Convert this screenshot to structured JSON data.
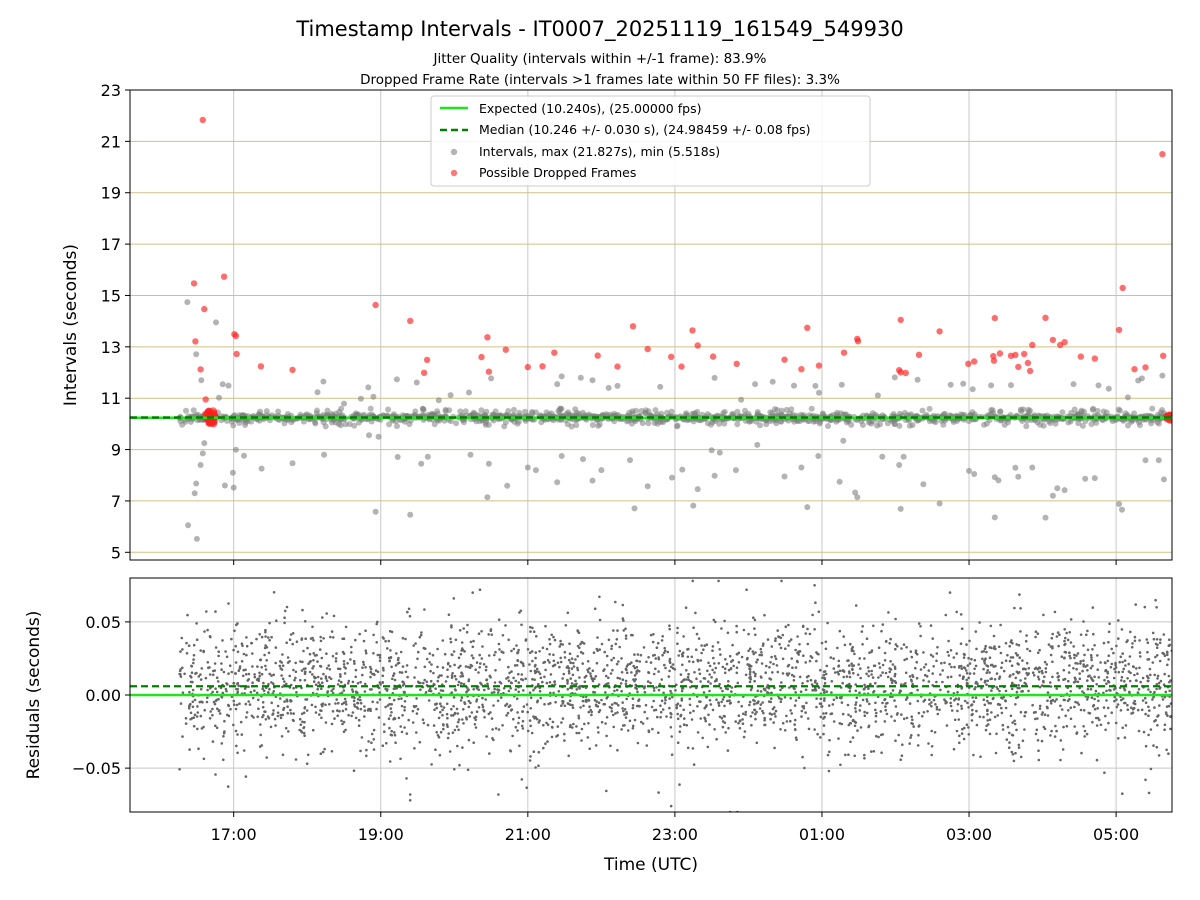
{
  "chart_data": {
    "type": "scatter",
    "title": "Timestamp Intervals - IT0007_20251119_161549_549930",
    "subtitle_lines": [
      "Jitter Quality (intervals within +/-1 frame): 83.9%",
      "Dropped Frame Rate (intervals >1 frames late within 50 FF files): 3.3%"
    ],
    "xlabel": "Time (UTC)",
    "x_ticks": [
      "17:00",
      "19:00",
      "21:00",
      "23:00",
      "01:00",
      "03:00",
      "05:00"
    ],
    "x_range_hours": [
      15.59,
      29.76
    ],
    "x_data_range_hours": [
      16.26,
      29.76
    ],
    "top": {
      "ylabel": "Intervals (seconds)",
      "ylim": [
        4.7,
        23.0
      ],
      "y_ticks": [
        5,
        7,
        9,
        11,
        13,
        15,
        17,
        19,
        21,
        23
      ],
      "grid": "horizontal gold lines at odd-second ticks, vertical grey lines at time ticks",
      "legend_position": "upper-center",
      "legend": [
        "Expected (10.240s), (25.00000 fps)",
        "Median (10.246 +/- 0.030 s), (24.98459 +/- 0.08 fps)",
        "Intervals, max (21.827s), min (5.518s)",
        "Possible Dropped Frames"
      ],
      "expected_interval": 10.24,
      "median_interval": 10.246,
      "max_interval": 21.827,
      "min_interval": 5.518,
      "dropped_frames": [
        {
          "x": 16.46,
          "y": 15.47
        },
        {
          "x": 16.48,
          "y": 13.21
        },
        {
          "x": 16.55,
          "y": 12.12
        },
        {
          "x": 16.58,
          "y": 21.83
        },
        {
          "x": 16.6,
          "y": 14.47
        },
        {
          "x": 16.62,
          "y": 10.95
        },
        {
          "x": 16.87,
          "y": 15.73
        },
        {
          "x": 17.01,
          "y": 13.49
        },
        {
          "x": 17.03,
          "y": 13.42
        },
        {
          "x": 17.04,
          "y": 12.72
        },
        {
          "x": 17.37,
          "y": 12.24
        },
        {
          "x": 17.8,
          "y": 12.1
        },
        {
          "x": 18.93,
          "y": 14.63
        },
        {
          "x": 19.4,
          "y": 14.01
        },
        {
          "x": 19.59,
          "y": 11.99
        },
        {
          "x": 19.63,
          "y": 12.49
        },
        {
          "x": 20.37,
          "y": 12.6
        },
        {
          "x": 20.45,
          "y": 13.37
        },
        {
          "x": 20.47,
          "y": 12.03
        },
        {
          "x": 20.7,
          "y": 12.89
        },
        {
          "x": 21.0,
          "y": 12.21
        },
        {
          "x": 21.2,
          "y": 12.24
        },
        {
          "x": 21.36,
          "y": 12.77
        },
        {
          "x": 21.95,
          "y": 12.66
        },
        {
          "x": 22.22,
          "y": 12.23
        },
        {
          "x": 22.43,
          "y": 13.8
        },
        {
          "x": 22.63,
          "y": 12.91
        },
        {
          "x": 22.95,
          "y": 12.61
        },
        {
          "x": 23.09,
          "y": 12.23
        },
        {
          "x": 23.24,
          "y": 13.64
        },
        {
          "x": 23.31,
          "y": 13.05
        },
        {
          "x": 23.52,
          "y": 12.62
        },
        {
          "x": 23.84,
          "y": 12.34
        },
        {
          "x": 24.49,
          "y": 12.5
        },
        {
          "x": 24.72,
          "y": 12.13
        },
        {
          "x": 24.8,
          "y": 13.74
        },
        {
          "x": 24.96,
          "y": 12.27
        },
        {
          "x": 25.3,
          "y": 12.77
        },
        {
          "x": 25.48,
          "y": 13.31
        },
        {
          "x": 25.49,
          "y": 13.22
        },
        {
          "x": 26.05,
          "y": 12.09
        },
        {
          "x": 26.07,
          "y": 12.01
        },
        {
          "x": 26.14,
          "y": 11.98
        },
        {
          "x": 26.07,
          "y": 14.05
        },
        {
          "x": 26.32,
          "y": 12.69
        },
        {
          "x": 26.6,
          "y": 13.6
        },
        {
          "x": 26.99,
          "y": 12.34
        },
        {
          "x": 27.07,
          "y": 12.43
        },
        {
          "x": 27.33,
          "y": 12.64
        },
        {
          "x": 27.34,
          "y": 12.46
        },
        {
          "x": 27.35,
          "y": 14.12
        },
        {
          "x": 27.42,
          "y": 12.74
        },
        {
          "x": 27.57,
          "y": 12.65
        },
        {
          "x": 27.63,
          "y": 12.68
        },
        {
          "x": 27.67,
          "y": 12.22
        },
        {
          "x": 27.75,
          "y": 12.72
        },
        {
          "x": 27.8,
          "y": 12.37
        },
        {
          "x": 27.83,
          "y": 12.06
        },
        {
          "x": 27.86,
          "y": 13.07
        },
        {
          "x": 28.04,
          "y": 14.13
        },
        {
          "x": 28.14,
          "y": 13.27
        },
        {
          "x": 28.24,
          "y": 13.07
        },
        {
          "x": 28.3,
          "y": 13.18
        },
        {
          "x": 28.52,
          "y": 12.62
        },
        {
          "x": 28.71,
          "y": 12.54
        },
        {
          "x": 29.04,
          "y": 13.66
        },
        {
          "x": 29.09,
          "y": 15.29
        },
        {
          "x": 29.25,
          "y": 12.13
        },
        {
          "x": 29.4,
          "y": 12.2
        },
        {
          "x": 29.64,
          "y": 12.65
        },
        {
          "x": 29.63,
          "y": 20.5
        }
      ],
      "interval_outliers": [
        {
          "x": 16.37,
          "y": 14.74
        },
        {
          "x": 16.38,
          "y": 6.05
        },
        {
          "x": 16.5,
          "y": 5.52
        },
        {
          "x": 16.47,
          "y": 7.3
        },
        {
          "x": 16.49,
          "y": 7.68
        },
        {
          "x": 16.49,
          "y": 12.71
        },
        {
          "x": 16.56,
          "y": 11.7
        },
        {
          "x": 16.55,
          "y": 8.4
        },
        {
          "x": 16.58,
          "y": 8.85
        },
        {
          "x": 16.6,
          "y": 9.25
        },
        {
          "x": 16.76,
          "y": 13.95
        },
        {
          "x": 16.8,
          "y": 11.02
        },
        {
          "x": 16.85,
          "y": 11.54
        },
        {
          "x": 16.88,
          "y": 7.6
        },
        {
          "x": 16.93,
          "y": 11.49
        },
        {
          "x": 16.99,
          "y": 8.1
        },
        {
          "x": 17.0,
          "y": 7.52
        },
        {
          "x": 17.03,
          "y": 8.99
        },
        {
          "x": 17.14,
          "y": 8.76
        },
        {
          "x": 17.38,
          "y": 8.26
        },
        {
          "x": 17.8,
          "y": 8.47
        },
        {
          "x": 18.14,
          "y": 11.23
        },
        {
          "x": 18.22,
          "y": 11.65
        },
        {
          "x": 18.23,
          "y": 8.8
        },
        {
          "x": 18.5,
          "y": 10.79
        },
        {
          "x": 18.73,
          "y": 10.98
        },
        {
          "x": 18.83,
          "y": 11.42
        },
        {
          "x": 18.9,
          "y": 11.06
        },
        {
          "x": 18.93,
          "y": 6.58
        },
        {
          "x": 18.84,
          "y": 9.56
        },
        {
          "x": 18.97,
          "y": 9.5
        },
        {
          "x": 19.22,
          "y": 11.73
        },
        {
          "x": 19.23,
          "y": 8.71
        },
        {
          "x": 19.4,
          "y": 6.46
        },
        {
          "x": 19.49,
          "y": 11.61
        },
        {
          "x": 19.55,
          "y": 8.45
        },
        {
          "x": 19.64,
          "y": 8.72
        },
        {
          "x": 19.79,
          "y": 10.92
        },
        {
          "x": 19.95,
          "y": 11.12
        },
        {
          "x": 20.2,
          "y": 11.22
        },
        {
          "x": 20.22,
          "y": 8.8
        },
        {
          "x": 20.45,
          "y": 7.14
        },
        {
          "x": 20.47,
          "y": 8.45
        },
        {
          "x": 20.5,
          "y": 11.77
        },
        {
          "x": 20.72,
          "y": 7.59
        },
        {
          "x": 21.0,
          "y": 8.3
        },
        {
          "x": 21.11,
          "y": 8.2
        },
        {
          "x": 21.4,
          "y": 7.73
        },
        {
          "x": 21.4,
          "y": 11.55
        },
        {
          "x": 21.46,
          "y": 11.85
        },
        {
          "x": 21.46,
          "y": 8.75
        },
        {
          "x": 21.72,
          "y": 11.8
        },
        {
          "x": 21.75,
          "y": 8.63
        },
        {
          "x": 21.88,
          "y": 11.7
        },
        {
          "x": 21.88,
          "y": 7.79
        },
        {
          "x": 22.0,
          "y": 8.2
        },
        {
          "x": 22.1,
          "y": 11.4
        },
        {
          "x": 22.22,
          "y": 11.48
        },
        {
          "x": 22.39,
          "y": 8.59
        },
        {
          "x": 22.45,
          "y": 6.71
        },
        {
          "x": 22.63,
          "y": 7.57
        },
        {
          "x": 22.8,
          "y": 11.44
        },
        {
          "x": 22.96,
          "y": 7.91
        },
        {
          "x": 23.1,
          "y": 8.22
        },
        {
          "x": 23.25,
          "y": 6.82
        },
        {
          "x": 23.31,
          "y": 7.46
        },
        {
          "x": 23.5,
          "y": 8.97
        },
        {
          "x": 23.54,
          "y": 11.79
        },
        {
          "x": 23.54,
          "y": 7.98
        },
        {
          "x": 23.61,
          "y": 8.88
        },
        {
          "x": 23.83,
          "y": 8.2
        },
        {
          "x": 23.9,
          "y": 10.94
        },
        {
          "x": 24.09,
          "y": 11.55
        },
        {
          "x": 24.12,
          "y": 9.18
        },
        {
          "x": 24.33,
          "y": 11.64
        },
        {
          "x": 24.49,
          "y": 7.95
        },
        {
          "x": 24.62,
          "y": 11.49
        },
        {
          "x": 24.72,
          "y": 8.3
        },
        {
          "x": 24.8,
          "y": 6.76
        },
        {
          "x": 24.91,
          "y": 11.48
        },
        {
          "x": 24.95,
          "y": 8.75
        },
        {
          "x": 24.96,
          "y": 11.21
        },
        {
          "x": 25.24,
          "y": 7.75
        },
        {
          "x": 25.27,
          "y": 11.52
        },
        {
          "x": 25.29,
          "y": 9.34
        },
        {
          "x": 25.45,
          "y": 7.33
        },
        {
          "x": 25.48,
          "y": 7.14
        },
        {
          "x": 25.76,
          "y": 11.11
        },
        {
          "x": 25.82,
          "y": 8.72
        },
        {
          "x": 25.99,
          "y": 11.81
        },
        {
          "x": 26.11,
          "y": 8.72
        },
        {
          "x": 26.05,
          "y": 8.4
        },
        {
          "x": 26.07,
          "y": 6.69
        },
        {
          "x": 26.3,
          "y": 11.72
        },
        {
          "x": 26.38,
          "y": 7.65
        },
        {
          "x": 26.6,
          "y": 6.9
        },
        {
          "x": 26.75,
          "y": 11.52
        },
        {
          "x": 27.0,
          "y": 8.17
        },
        {
          "x": 27.07,
          "y": 8.05
        },
        {
          "x": 26.92,
          "y": 11.56
        },
        {
          "x": 27.05,
          "y": 11.35
        },
        {
          "x": 27.3,
          "y": 11.5
        },
        {
          "x": 27.35,
          "y": 6.36
        },
        {
          "x": 27.35,
          "y": 7.92
        },
        {
          "x": 27.4,
          "y": 7.8
        },
        {
          "x": 27.57,
          "y": 11.51
        },
        {
          "x": 27.63,
          "y": 8.29
        },
        {
          "x": 27.67,
          "y": 7.94
        },
        {
          "x": 27.86,
          "y": 8.3
        },
        {
          "x": 28.04,
          "y": 6.35
        },
        {
          "x": 28.14,
          "y": 7.2
        },
        {
          "x": 28.2,
          "y": 7.49
        },
        {
          "x": 28.3,
          "y": 7.42
        },
        {
          "x": 28.42,
          "y": 11.55
        },
        {
          "x": 28.58,
          "y": 7.86
        },
        {
          "x": 28.71,
          "y": 7.89
        },
        {
          "x": 28.76,
          "y": 11.5
        },
        {
          "x": 28.9,
          "y": 11.37
        },
        {
          "x": 29.04,
          "y": 6.88
        },
        {
          "x": 29.08,
          "y": 6.66
        },
        {
          "x": 29.16,
          "y": 11.03
        },
        {
          "x": 29.3,
          "y": 11.69
        },
        {
          "x": 29.35,
          "y": 11.77
        },
        {
          "x": 29.4,
          "y": 8.58
        },
        {
          "x": 29.58,
          "y": 8.58
        },
        {
          "x": 29.63,
          "y": 11.88
        },
        {
          "x": 29.65,
          "y": 7.84
        }
      ]
    },
    "bottom": {
      "ylabel": "Residuals (seconds)",
      "ylim": [
        -0.08,
        0.08
      ],
      "y_ticks": [
        -0.05,
        0.0,
        0.05
      ],
      "y_tick_labels": [
        "−0.05",
        "0.00",
        "0.05"
      ],
      "expected_line": 0.0,
      "median_line": 0.006,
      "residual_sd": 0.022,
      "residual_outliers": [
        {
          "x": 19.35,
          "y": -0.057
        },
        {
          "x": 19.4,
          "y": -0.068
        },
        {
          "x": 19.4,
          "y": -0.072
        },
        {
          "x": 20.25,
          "y": 0.07
        },
        {
          "x": 20.35,
          "y": 0.072
        },
        {
          "x": 20.6,
          "y": -0.068
        },
        {
          "x": 22.95,
          "y": -0.076
        },
        {
          "x": 23.75,
          "y": -0.08
        },
        {
          "x": 23.85,
          "y": -0.08
        },
        {
          "x": 24.45,
          "y": 0.078
        },
        {
          "x": 24.9,
          "y": 0.075
        },
        {
          "x": 29.4,
          "y": -0.058
        },
        {
          "x": 29.55,
          "y": 0.06
        }
      ]
    },
    "colors": {
      "expected": "#1ee61e",
      "median": "#008000",
      "intervals": "#808080",
      "dropped": "#ff2020",
      "residuals": "#666666",
      "hgrid": "#d4c080",
      "vgrid": "#c8c8c8"
    }
  }
}
